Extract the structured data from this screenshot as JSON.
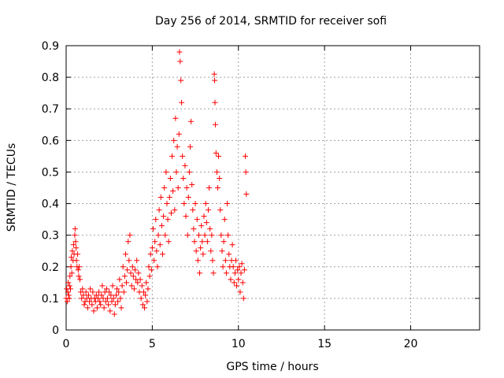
{
  "chart_data": {
    "type": "scatter",
    "title": "Day 256 of 2014, SRMTID for receiver sofi",
    "xlabel": "GPS time / hours",
    "ylabel": "SRMTID / TECUs",
    "xlim": [
      0,
      24
    ],
    "ylim": [
      0,
      0.9
    ],
    "xticks": [
      0,
      5,
      10,
      15,
      20
    ],
    "xtick_labels": [
      "0",
      "5",
      "10",
      "15",
      "20"
    ],
    "yticks": [
      0,
      0.1,
      0.2,
      0.3,
      0.4,
      0.5,
      0.6,
      0.7,
      0.8,
      0.9
    ],
    "ytick_labels": [
      "0",
      "0.1",
      "0.2",
      "0.3",
      "0.4",
      "0.5",
      "0.6",
      "0.7",
      "0.8",
      "0.9"
    ],
    "grid": true,
    "marker": "plus",
    "color": "#ff0000",
    "series": [
      {
        "name": "SRMTID",
        "points": [
          [
            0.0,
            0.1
          ],
          [
            0.03,
            0.13
          ],
          [
            0.06,
            0.09
          ],
          [
            0.1,
            0.12
          ],
          [
            0.12,
            0.15
          ],
          [
            0.15,
            0.11
          ],
          [
            0.18,
            0.1
          ],
          [
            0.2,
            0.14
          ],
          [
            0.22,
            0.17
          ],
          [
            0.25,
            0.13
          ],
          [
            0.28,
            0.2
          ],
          [
            0.3,
            0.23
          ],
          [
            0.33,
            0.18
          ],
          [
            0.36,
            0.25
          ],
          [
            0.4,
            0.22
          ],
          [
            0.43,
            0.27
          ],
          [
            0.46,
            0.24
          ],
          [
            0.5,
            0.3
          ],
          [
            0.52,
            0.32
          ],
          [
            0.55,
            0.28
          ],
          [
            0.58,
            0.26
          ],
          [
            0.6,
            0.22
          ],
          [
            0.63,
            0.2
          ],
          [
            0.66,
            0.24
          ],
          [
            0.7,
            0.19
          ],
          [
            0.73,
            0.17
          ],
          [
            0.76,
            0.2
          ],
          [
            0.8,
            0.16
          ],
          [
            0.85,
            0.12
          ],
          [
            0.9,
            0.1
          ],
          [
            0.95,
            0.13
          ],
          [
            1.0,
            0.11
          ],
          [
            1.05,
            0.08
          ],
          [
            1.1,
            0.09
          ],
          [
            1.15,
            0.12
          ],
          [
            1.2,
            0.1
          ],
          [
            1.25,
            0.07
          ],
          [
            1.3,
            0.11
          ],
          [
            1.35,
            0.09
          ],
          [
            1.4,
            0.13
          ],
          [
            1.45,
            0.1
          ],
          [
            1.5,
            0.08
          ],
          [
            1.55,
            0.12
          ],
          [
            1.6,
            0.06
          ],
          [
            1.65,
            0.1
          ],
          [
            1.7,
            0.09
          ],
          [
            1.75,
            0.11
          ],
          [
            1.8,
            0.07
          ],
          [
            1.85,
            0.1
          ],
          [
            1.9,
            0.12
          ],
          [
            1.95,
            0.09
          ],
          [
            2.0,
            0.08
          ],
          [
            2.05,
            0.11
          ],
          [
            2.1,
            0.14
          ],
          [
            2.15,
            0.1
          ],
          [
            2.2,
            0.07
          ],
          [
            2.25,
            0.12
          ],
          [
            2.3,
            0.09
          ],
          [
            2.35,
            0.13
          ],
          [
            2.4,
            0.1
          ],
          [
            2.45,
            0.08
          ],
          [
            2.5,
            0.12
          ],
          [
            2.55,
            0.06
          ],
          [
            2.6,
            0.11
          ],
          [
            2.65,
            0.09
          ],
          [
            2.7,
            0.14
          ],
          [
            2.75,
            0.1
          ],
          [
            2.8,
            0.05
          ],
          [
            2.85,
            0.08
          ],
          [
            2.9,
            0.11
          ],
          [
            2.95,
            0.13
          ],
          [
            3.0,
            0.09
          ],
          [
            3.05,
            0.12
          ],
          [
            3.1,
            0.16
          ],
          [
            3.15,
            0.1
          ],
          [
            3.2,
            0.07
          ],
          [
            3.25,
            0.14
          ],
          [
            3.3,
            0.2
          ],
          [
            3.35,
            0.12
          ],
          [
            3.4,
            0.17
          ],
          [
            3.45,
            0.24
          ],
          [
            3.5,
            0.15
          ],
          [
            3.55,
            0.19
          ],
          [
            3.6,
            0.28
          ],
          [
            3.65,
            0.22
          ],
          [
            3.7,
            0.3
          ],
          [
            3.75,
            0.18
          ],
          [
            3.8,
            0.14
          ],
          [
            3.85,
            0.2
          ],
          [
            3.9,
            0.17
          ],
          [
            3.95,
            0.13
          ],
          [
            4.0,
            0.19
          ],
          [
            4.05,
            0.16
          ],
          [
            4.1,
            0.22
          ],
          [
            4.15,
            0.15
          ],
          [
            4.2,
            0.18
          ],
          [
            4.25,
            0.12
          ],
          [
            4.3,
            0.16
          ],
          [
            4.35,
            0.1
          ],
          [
            4.4,
            0.14
          ],
          [
            4.45,
            0.08
          ],
          [
            4.5,
            0.12
          ],
          [
            4.55,
            0.07
          ],
          [
            4.6,
            0.11
          ],
          [
            4.65,
            0.15
          ],
          [
            4.7,
            0.09
          ],
          [
            4.75,
            0.13
          ],
          [
            4.8,
            0.2
          ],
          [
            4.85,
            0.17
          ],
          [
            4.9,
            0.24
          ],
          [
            4.95,
            0.19
          ],
          [
            5.0,
            0.26
          ],
          [
            5.05,
            0.32
          ],
          [
            5.1,
            0.22
          ],
          [
            5.15,
            0.28
          ],
          [
            5.2,
            0.35
          ],
          [
            5.25,
            0.25
          ],
          [
            5.3,
            0.2
          ],
          [
            5.35,
            0.3
          ],
          [
            5.4,
            0.38
          ],
          [
            5.45,
            0.27
          ],
          [
            5.5,
            0.42
          ],
          [
            5.55,
            0.33
          ],
          [
            5.6,
            0.24
          ],
          [
            5.65,
            0.36
          ],
          [
            5.7,
            0.45
          ],
          [
            5.75,
            0.3
          ],
          [
            5.8,
            0.5
          ],
          [
            5.85,
            0.4
          ],
          [
            5.9,
            0.35
          ],
          [
            5.95,
            0.28
          ],
          [
            6.0,
            0.42
          ],
          [
            6.05,
            0.48
          ],
          [
            6.1,
            0.37
          ],
          [
            6.15,
            0.55
          ],
          [
            6.2,
            0.44
          ],
          [
            6.25,
            0.6
          ],
          [
            6.3,
            0.38
          ],
          [
            6.35,
            0.67
          ],
          [
            6.4,
            0.5
          ],
          [
            6.45,
            0.58
          ],
          [
            6.5,
            0.45
          ],
          [
            6.55,
            0.62
          ],
          [
            6.58,
            0.88
          ],
          [
            6.62,
            0.85
          ],
          [
            6.66,
            0.79
          ],
          [
            6.7,
            0.72
          ],
          [
            6.75,
            0.55
          ],
          [
            6.8,
            0.48
          ],
          [
            6.85,
            0.4
          ],
          [
            6.9,
            0.52
          ],
          [
            6.95,
            0.36
          ],
          [
            7.0,
            0.45
          ],
          [
            7.05,
            0.3
          ],
          [
            7.1,
            0.42
          ],
          [
            7.15,
            0.5
          ],
          [
            7.2,
            0.58
          ],
          [
            7.25,
            0.66
          ],
          [
            7.3,
            0.46
          ],
          [
            7.35,
            0.38
          ],
          [
            7.4,
            0.32
          ],
          [
            7.45,
            0.28
          ],
          [
            7.5,
            0.4
          ],
          [
            7.55,
            0.25
          ],
          [
            7.6,
            0.35
          ],
          [
            7.65,
            0.22
          ],
          [
            7.7,
            0.3
          ],
          [
            7.75,
            0.18
          ],
          [
            7.8,
            0.26
          ],
          [
            7.85,
            0.33
          ],
          [
            7.9,
            0.28
          ],
          [
            7.95,
            0.24
          ],
          [
            8.0,
            0.36
          ],
          [
            8.05,
            0.3
          ],
          [
            8.1,
            0.4
          ],
          [
            8.15,
            0.34
          ],
          [
            8.2,
            0.28
          ],
          [
            8.25,
            0.38
          ],
          [
            8.3,
            0.45
          ],
          [
            8.35,
            0.32
          ],
          [
            8.4,
            0.25
          ],
          [
            8.45,
            0.3
          ],
          [
            8.5,
            0.22
          ],
          [
            8.55,
            0.18
          ],
          [
            8.6,
            0.81
          ],
          [
            8.62,
            0.79
          ],
          [
            8.64,
            0.72
          ],
          [
            8.66,
            0.65
          ],
          [
            8.7,
            0.56
          ],
          [
            8.75,
            0.5
          ],
          [
            8.8,
            0.45
          ],
          [
            8.85,
            0.55
          ],
          [
            8.9,
            0.48
          ],
          [
            8.95,
            0.38
          ],
          [
            9.0,
            0.3
          ],
          [
            9.05,
            0.25
          ],
          [
            9.1,
            0.2
          ],
          [
            9.15,
            0.28
          ],
          [
            9.2,
            0.35
          ],
          [
            9.25,
            0.22
          ],
          [
            9.3,
            0.18
          ],
          [
            9.35,
            0.4
          ],
          [
            9.4,
            0.3
          ],
          [
            9.45,
            0.24
          ],
          [
            9.5,
            0.2
          ],
          [
            9.55,
            0.16
          ],
          [
            9.6,
            0.22
          ],
          [
            9.65,
            0.27
          ],
          [
            9.7,
            0.2
          ],
          [
            9.75,
            0.15
          ],
          [
            9.8,
            0.18
          ],
          [
            9.85,
            0.22
          ],
          [
            9.9,
            0.14
          ],
          [
            9.95,
            0.19
          ],
          [
            10.0,
            0.16
          ],
          [
            10.05,
            0.2
          ],
          [
            10.1,
            0.12
          ],
          [
            10.15,
            0.18
          ],
          [
            10.2,
            0.21
          ],
          [
            10.25,
            0.15
          ],
          [
            10.3,
            0.1
          ],
          [
            10.35,
            0.19
          ],
          [
            10.4,
            0.55
          ],
          [
            10.43,
            0.5
          ],
          [
            10.46,
            0.43
          ]
        ]
      }
    ]
  }
}
